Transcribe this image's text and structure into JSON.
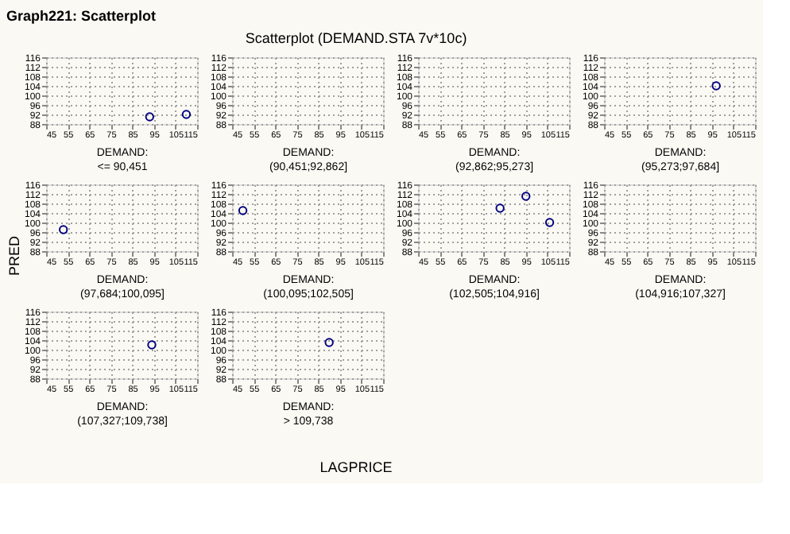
{
  "chart_data": [
    {
      "type": "scatter",
      "annotations": [
        "Graph221: Scatterplot",
        "Scatterplot (DEMAND.STA 7v*10c)"
      ],
      "xlabel": "DEMAND:\n<= 90,451",
      "x": [
        93,
        110
      ],
      "values": [
        91,
        92
      ],
      "color": "#000080",
      "marker": "circle",
      "xlim": [
        45,
        115
      ],
      "ylim": [
        88,
        116
      ],
      "xticks": [
        45,
        55,
        65,
        75,
        85,
        95,
        105,
        115
      ],
      "yticks": [
        88,
        92,
        96,
        100,
        104,
        108,
        112,
        116
      ],
      "grid": true
    },
    {
      "type": "scatter",
      "xlabel": "DEMAND:\n(90,451;92,862]",
      "color": "#000080",
      "marker": "circle",
      "xlim": [
        45,
        115
      ],
      "ylim": [
        88,
        116
      ],
      "xticks": [
        45,
        55,
        65,
        75,
        85,
        95,
        105,
        115
      ],
      "yticks": [
        88,
        92,
        96,
        100,
        104,
        108,
        112,
        116
      ],
      "grid": true
    },
    {
      "type": "scatter",
      "xlabel": "DEMAND:\n(92,862;95,273]",
      "color": "#000080",
      "marker": "circle",
      "xlim": [
        45,
        115
      ],
      "ylim": [
        88,
        116
      ],
      "xticks": [
        45,
        55,
        65,
        75,
        85,
        95,
        105,
        115
      ],
      "yticks": [
        88,
        92,
        96,
        100,
        104,
        108,
        112,
        116
      ],
      "grid": true
    },
    {
      "type": "scatter",
      "xlabel": "DEMAND:\n(95,273;97,684]",
      "x": [
        97
      ],
      "values": [
        104
      ],
      "color": "#000080",
      "marker": "circle",
      "xlim": [
        45,
        115
      ],
      "ylim": [
        88,
        116
      ],
      "xticks": [
        45,
        55,
        65,
        75,
        85,
        95,
        105,
        115
      ],
      "yticks": [
        88,
        92,
        96,
        100,
        104,
        108,
        112,
        116
      ],
      "grid": true
    },
    {
      "type": "scatter",
      "ylabel": "PRED",
      "xlabel": "DEMAND:\n(97,684;100,095]",
      "x": [
        53
      ],
      "values": [
        97
      ],
      "color": "#000080",
      "marker": "circle",
      "xlim": [
        45,
        115
      ],
      "ylim": [
        88,
        116
      ],
      "xticks": [
        45,
        55,
        65,
        75,
        85,
        95,
        105,
        115
      ],
      "yticks": [
        88,
        92,
        96,
        100,
        104,
        108,
        112,
        116
      ],
      "grid": true
    },
    {
      "type": "scatter",
      "xlabel": "DEMAND:\n(100,095;102,505]",
      "x": [
        50
      ],
      "values": [
        105
      ],
      "color": "#000080",
      "marker": "circle",
      "xlim": [
        45,
        115
      ],
      "ylim": [
        88,
        116
      ],
      "xticks": [
        45,
        55,
        65,
        75,
        85,
        95,
        105,
        115
      ],
      "yticks": [
        88,
        92,
        96,
        100,
        104,
        108,
        112,
        116
      ],
      "grid": true
    },
    {
      "type": "scatter",
      "xlabel": "DEMAND:\n(102,505;104,916]",
      "x": [
        83,
        95,
        106
      ],
      "values": [
        106,
        111,
        100
      ],
      "color": "#000080",
      "marker": "circle",
      "xlim": [
        45,
        115
      ],
      "ylim": [
        88,
        116
      ],
      "xticks": [
        45,
        55,
        65,
        75,
        85,
        95,
        105,
        115
      ],
      "yticks": [
        88,
        92,
        96,
        100,
        104,
        108,
        112,
        116
      ],
      "grid": true
    },
    {
      "type": "scatter",
      "xlabel": "DEMAND:\n(104,916;107,327]",
      "color": "#000080",
      "marker": "circle",
      "xlim": [
        45,
        115
      ],
      "ylim": [
        88,
        116
      ],
      "xticks": [
        45,
        55,
        65,
        75,
        85,
        95,
        105,
        115
      ],
      "yticks": [
        88,
        92,
        96,
        100,
        104,
        108,
        112,
        116
      ],
      "grid": true
    },
    {
      "type": "scatter",
      "xlabel": "DEMAND:\n(107,327;109,738]",
      "x": [
        94
      ],
      "values": [
        102
      ],
      "color": "#000080",
      "marker": "circle",
      "xlim": [
        45,
        115
      ],
      "ylim": [
        88,
        116
      ],
      "xticks": [
        45,
        55,
        65,
        75,
        85,
        95,
        105,
        115
      ],
      "yticks": [
        88,
        92,
        96,
        100,
        104,
        108,
        112,
        116
      ],
      "grid": true
    },
    {
      "type": "scatter",
      "xlabel": "DEMAND:\n> 109,738",
      "annotations": [
        "LAGPRICE"
      ],
      "x": [
        90
      ],
      "values": [
        103
      ],
      "color": "#000080",
      "marker": "circle",
      "xlim": [
        45,
        115
      ],
      "ylim": [
        88,
        116
      ],
      "xticks": [
        45,
        55,
        65,
        75,
        85,
        95,
        105,
        115
      ],
      "yticks": [
        88,
        92,
        96,
        100,
        104,
        108,
        112,
        116
      ],
      "grid": true
    }
  ]
}
